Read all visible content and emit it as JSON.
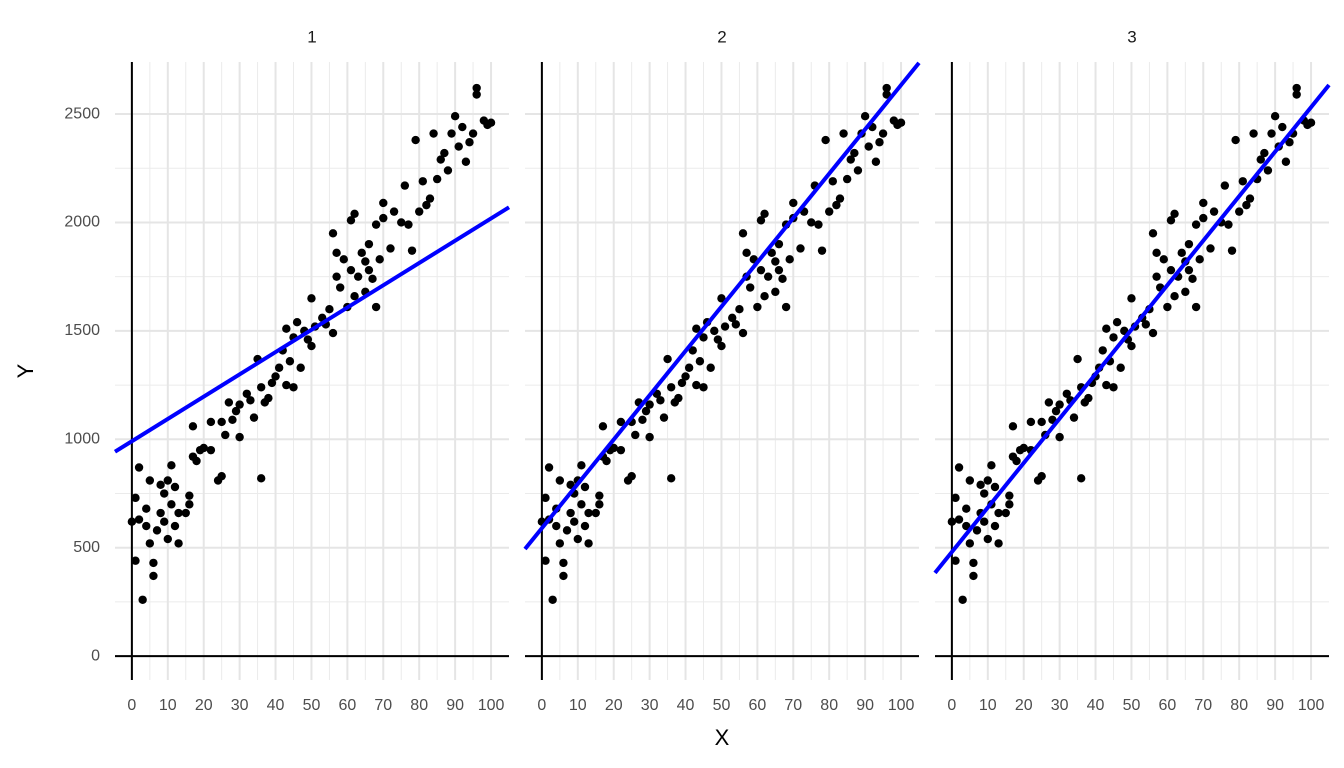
{
  "chart_data": {
    "type": "scatter",
    "xlabel": "X",
    "ylabel": "Y",
    "color": "#000000",
    "line_color": "#0000ff",
    "grid": true,
    "xlim": [
      -4.7,
      105
    ],
    "ylim": [
      -110,
      2740
    ],
    "xticks": [
      0,
      10,
      20,
      30,
      40,
      50,
      60,
      70,
      80,
      90,
      100
    ],
    "yticks": [
      0,
      500,
      1000,
      1500,
      2000,
      2500
    ],
    "x": [
      0,
      1,
      1,
      2,
      2,
      3,
      4,
      4,
      5,
      5,
      6,
      6,
      7,
      8,
      8,
      9,
      9,
      10,
      10,
      11,
      11,
      12,
      12,
      13,
      13,
      15,
      16,
      16,
      17,
      17,
      18,
      19,
      20,
      22,
      22,
      24,
      25,
      25,
      26,
      27,
      28,
      29,
      30,
      30,
      32,
      33,
      34,
      35,
      36,
      36,
      37,
      38,
      39,
      40,
      41,
      42,
      43,
      43,
      44,
      45,
      45,
      46,
      47,
      48,
      49,
      50,
      50,
      51,
      53,
      54,
      55,
      56,
      56,
      57,
      57,
      58,
      59,
      60,
      61,
      61,
      62,
      62,
      63,
      64,
      65,
      65,
      66,
      66,
      67,
      68,
      68,
      69,
      70,
      70,
      72,
      73,
      75,
      76,
      77,
      78,
      79,
      80,
      81,
      82,
      83,
      84,
      85,
      86,
      87,
      88,
      89,
      90,
      91,
      92,
      93,
      94,
      95,
      96,
      96,
      98,
      99,
      100
    ],
    "y": [
      620,
      730,
      440,
      630,
      870,
      260,
      600,
      680,
      520,
      810,
      430,
      370,
      580,
      660,
      790,
      750,
      620,
      540,
      810,
      700,
      880,
      780,
      600,
      660,
      520,
      660,
      700,
      740,
      920,
      1060,
      900,
      950,
      960,
      950,
      1080,
      810,
      1080,
      830,
      1020,
      1170,
      1090,
      1130,
      1010,
      1160,
      1210,
      1180,
      1100,
      1370,
      820,
      1240,
      1170,
      1190,
      1260,
      1290,
      1330,
      1410,
      1510,
      1250,
      1360,
      1470,
      1240,
      1540,
      1330,
      1500,
      1460,
      1430,
      1650,
      1520,
      1560,
      1530,
      1600,
      1950,
      1490,
      1750,
      1860,
      1700,
      1830,
      1610,
      2010,
      1780,
      2040,
      1660,
      1750,
      1860,
      1820,
      1680,
      1900,
      1780,
      1740,
      1610,
      1990,
      1830,
      2090,
      2020,
      1880,
      2050,
      2000,
      2170,
      1990,
      1870,
      2380,
      2050,
      2190,
      2080,
      2110,
      2410,
      2200,
      2290,
      2320,
      2240,
      2410,
      2490,
      2350,
      2440,
      2280,
      2370,
      2410,
      2620,
      2590,
      2470,
      2450,
      2460
    ],
    "facets": [
      {
        "title": "1",
        "line": {
          "x": [
            -4.7,
            105
          ],
          "y": [
            943,
            2070
          ]
        }
      },
      {
        "title": "2",
        "line": {
          "x": [
            -4.7,
            105
          ],
          "y": [
            494,
            2736
          ]
        }
      },
      {
        "title": "3",
        "line": {
          "x": [
            -4.7,
            105
          ],
          "y": [
            384,
            2634
          ]
        }
      }
    ]
  }
}
